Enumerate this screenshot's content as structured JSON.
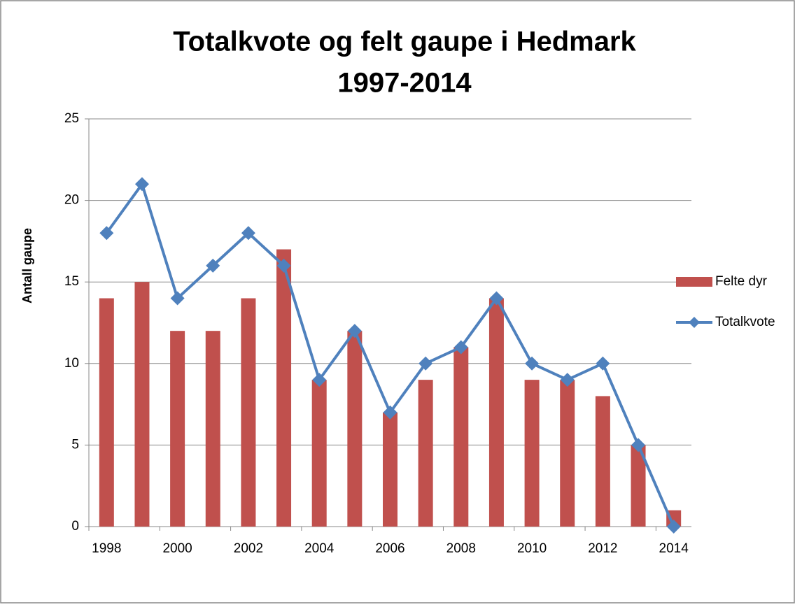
{
  "chart_data": {
    "type": "bar-line",
    "title": [
      "Totalkvote og felt gaupe i Hedmark",
      "1997-2014"
    ],
    "y_label": "Antall gaupe",
    "categories": [
      "1998",
      null,
      "2000",
      null,
      "2002",
      null,
      "2004",
      null,
      "2006",
      null,
      "2008",
      null,
      "2010",
      null,
      "2012",
      null,
      "2014"
    ],
    "series": [
      {
        "name": "Felte dyr",
        "type": "bar",
        "color": "#c0504d",
        "values": [
          14,
          15,
          12,
          12,
          14,
          17,
          9,
          12,
          7,
          9,
          11,
          14,
          9,
          9,
          8,
          5,
          1
        ]
      },
      {
        "name": "Totalkvote",
        "type": "line",
        "color": "#4f81bd",
        "values": [
          18,
          21,
          14,
          16,
          18,
          16,
          9,
          12,
          7,
          10,
          11,
          14,
          10,
          9,
          10,
          5,
          0
        ]
      }
    ],
    "ylim": [
      0,
      25
    ],
    "yticks": [
      0,
      5,
      10,
      15,
      20,
      25
    ],
    "grid": true,
    "legend": "right"
  }
}
